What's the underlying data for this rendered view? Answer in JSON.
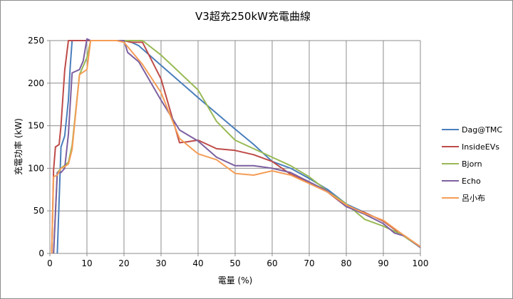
{
  "chart_data": {
    "type": "line",
    "title": "V3超充250kW充電曲線",
    "xlabel": "電量 (%)",
    "ylabel": "充電功率 (kW)",
    "xlim": [
      0,
      100
    ],
    "ylim": [
      0,
      250
    ],
    "xticks": [
      0,
      10,
      20,
      30,
      40,
      50,
      60,
      70,
      80,
      90,
      100
    ],
    "yticks": [
      0,
      50,
      100,
      150,
      200,
      250
    ],
    "grid": true,
    "legend_position": "right",
    "series": [
      {
        "name": "Dag@TMC",
        "color": "#4a7ebb",
        "points": [
          [
            2,
            0
          ],
          [
            3,
            125
          ],
          [
            4,
            138
          ],
          [
            5,
            180
          ],
          [
            5.5,
            220
          ],
          [
            6,
            250
          ],
          [
            10,
            250
          ],
          [
            18,
            250
          ],
          [
            20,
            250
          ],
          [
            22,
            248
          ],
          [
            24,
            244
          ],
          [
            30,
            221
          ],
          [
            40,
            183
          ],
          [
            50,
            146
          ],
          [
            55,
            128
          ],
          [
            60,
            108
          ],
          [
            65,
            100
          ],
          [
            70,
            88
          ],
          [
            75,
            75
          ],
          [
            80,
            58
          ],
          [
            85,
            48
          ],
          [
            90,
            38
          ],
          [
            95,
            22
          ],
          [
            100,
            7
          ]
        ]
      },
      {
        "name": "InsideEVs",
        "color": "#be4b48",
        "points": [
          [
            0.5,
            0
          ],
          [
            1,
            98
          ],
          [
            1.5,
            125
          ],
          [
            2.5,
            128
          ],
          [
            3,
            150
          ],
          [
            4,
            215
          ],
          [
            5,
            250
          ],
          [
            10,
            250
          ],
          [
            20,
            250
          ],
          [
            22,
            248
          ],
          [
            25,
            248
          ],
          [
            30,
            205
          ],
          [
            35,
            130
          ],
          [
            37,
            131
          ],
          [
            40,
            133
          ],
          [
            45,
            123
          ],
          [
            50,
            121
          ],
          [
            55,
            116
          ],
          [
            60,
            108
          ],
          [
            65,
            93
          ],
          [
            70,
            83
          ],
          [
            75,
            72
          ],
          [
            80,
            55
          ],
          [
            85,
            48
          ],
          [
            90,
            38
          ],
          [
            95,
            22
          ],
          [
            100,
            8
          ]
        ]
      },
      {
        "name": "Bjorn",
        "color": "#98b954",
        "points": [
          [
            1,
            0
          ],
          [
            2,
            95
          ],
          [
            3,
            100
          ],
          [
            5,
            107
          ],
          [
            6,
            127
          ],
          [
            8,
            210
          ],
          [
            10,
            230
          ],
          [
            11,
            250
          ],
          [
            20,
            250
          ],
          [
            25,
            250
          ],
          [
            30,
            233
          ],
          [
            40,
            192
          ],
          [
            45,
            155
          ],
          [
            50,
            133
          ],
          [
            55,
            123
          ],
          [
            60,
            113
          ],
          [
            65,
            103
          ],
          [
            70,
            90
          ],
          [
            75,
            73
          ],
          [
            80,
            58
          ],
          [
            85,
            40
          ],
          [
            90,
            32
          ],
          [
            95,
            22
          ],
          [
            100,
            7
          ]
        ]
      },
      {
        "name": "Echo",
        "color": "#7d60a0",
        "points": [
          [
            1,
            0
          ],
          [
            2,
            95
          ],
          [
            3,
            95
          ],
          [
            4,
            100
          ],
          [
            5,
            140
          ],
          [
            6,
            212
          ],
          [
            8,
            216
          ],
          [
            9,
            226
          ],
          [
            10,
            252
          ],
          [
            11,
            250
          ],
          [
            20,
            250
          ],
          [
            21,
            236
          ],
          [
            24,
            225
          ],
          [
            30,
            180
          ],
          [
            35,
            145
          ],
          [
            40,
            132
          ],
          [
            45,
            113
          ],
          [
            50,
            103
          ],
          [
            55,
            103
          ],
          [
            60,
            100
          ],
          [
            65,
            95
          ],
          [
            70,
            84
          ],
          [
            75,
            73
          ],
          [
            80,
            55
          ],
          [
            85,
            46
          ],
          [
            90,
            35
          ],
          [
            93,
            24
          ],
          [
            96,
            20
          ],
          [
            100,
            7
          ]
        ]
      },
      {
        "name": "呂小布",
        "color": "#f59d56",
        "points": [
          [
            0.5,
            0
          ],
          [
            1,
            90
          ],
          [
            2,
            92
          ],
          [
            3,
            100
          ],
          [
            4,
            102
          ],
          [
            5,
            105
          ],
          [
            6,
            122
          ],
          [
            8,
            210
          ],
          [
            10,
            216
          ],
          [
            11,
            250
          ],
          [
            18,
            250
          ],
          [
            20,
            248
          ],
          [
            25,
            222
          ],
          [
            30,
            189
          ],
          [
            35,
            135
          ],
          [
            40,
            117
          ],
          [
            45,
            110
          ],
          [
            50,
            94
          ],
          [
            55,
            92
          ],
          [
            60,
            97
          ],
          [
            65,
            92
          ],
          [
            70,
            82
          ],
          [
            75,
            72
          ],
          [
            80,
            57
          ],
          [
            85,
            47
          ],
          [
            90,
            39
          ],
          [
            95,
            23
          ],
          [
            100,
            8
          ]
        ]
      }
    ]
  }
}
